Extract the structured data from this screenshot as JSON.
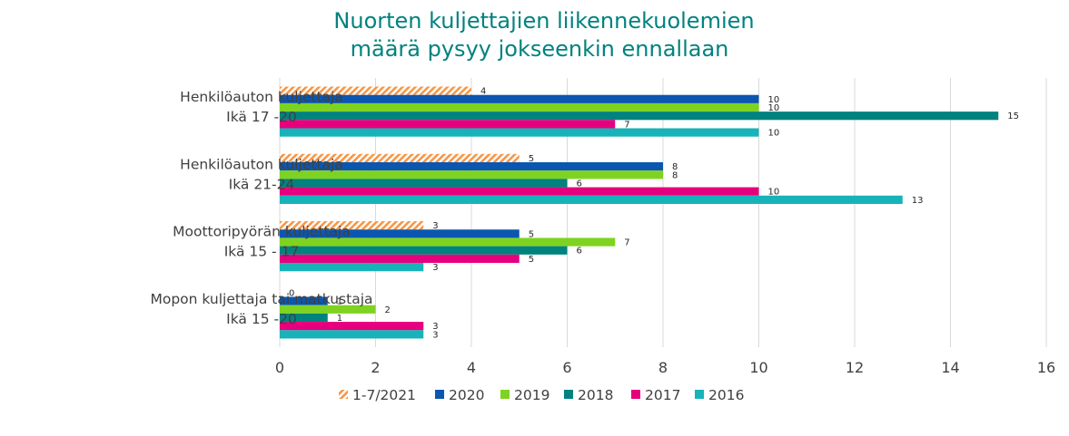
{
  "chart_data": {
    "type": "bar",
    "orientation": "horizontal",
    "title": [
      "Nuorten kuljettajien liikennekuolemien",
      "määrä pysyy jokseenkin ennallaan"
    ],
    "categories": [
      [
        "Henkilöauton kuljettaja",
        "Ikä 17 -20"
      ],
      [
        "Henkilöauton kuljettaja",
        "Ikä 21-24"
      ],
      [
        "Moottoripyörän kuljettaja",
        "Ikä 15 - 17"
      ],
      [
        "Mopon kuljettaja tai matkustaja",
        "Ikä 15 -20"
      ]
    ],
    "series": [
      {
        "name": "1-7/2021",
        "color": "#f79646",
        "pattern": "hatch",
        "values": [
          4,
          5,
          3,
          0
        ]
      },
      {
        "name": "2020",
        "color": "#0b57b0",
        "values": [
          10,
          8,
          5,
          1
        ]
      },
      {
        "name": "2019",
        "color": "#7ed321",
        "values": [
          10,
          8,
          7,
          2
        ]
      },
      {
        "name": "2018",
        "color": "#00827f",
        "values": [
          15,
          6,
          6,
          1
        ]
      },
      {
        "name": "2017",
        "color": "#e6007e",
        "values": [
          7,
          10,
          5,
          3
        ]
      },
      {
        "name": "2016",
        "color": "#17b3b8",
        "values": [
          10,
          13,
          3,
          3
        ]
      }
    ],
    "xlim": [
      0,
      16
    ],
    "xticks": [
      "0",
      "2",
      "4",
      "6",
      "8",
      "10",
      "12",
      "14",
      "16"
    ],
    "grid": "vertical",
    "legend": "bottom"
  }
}
